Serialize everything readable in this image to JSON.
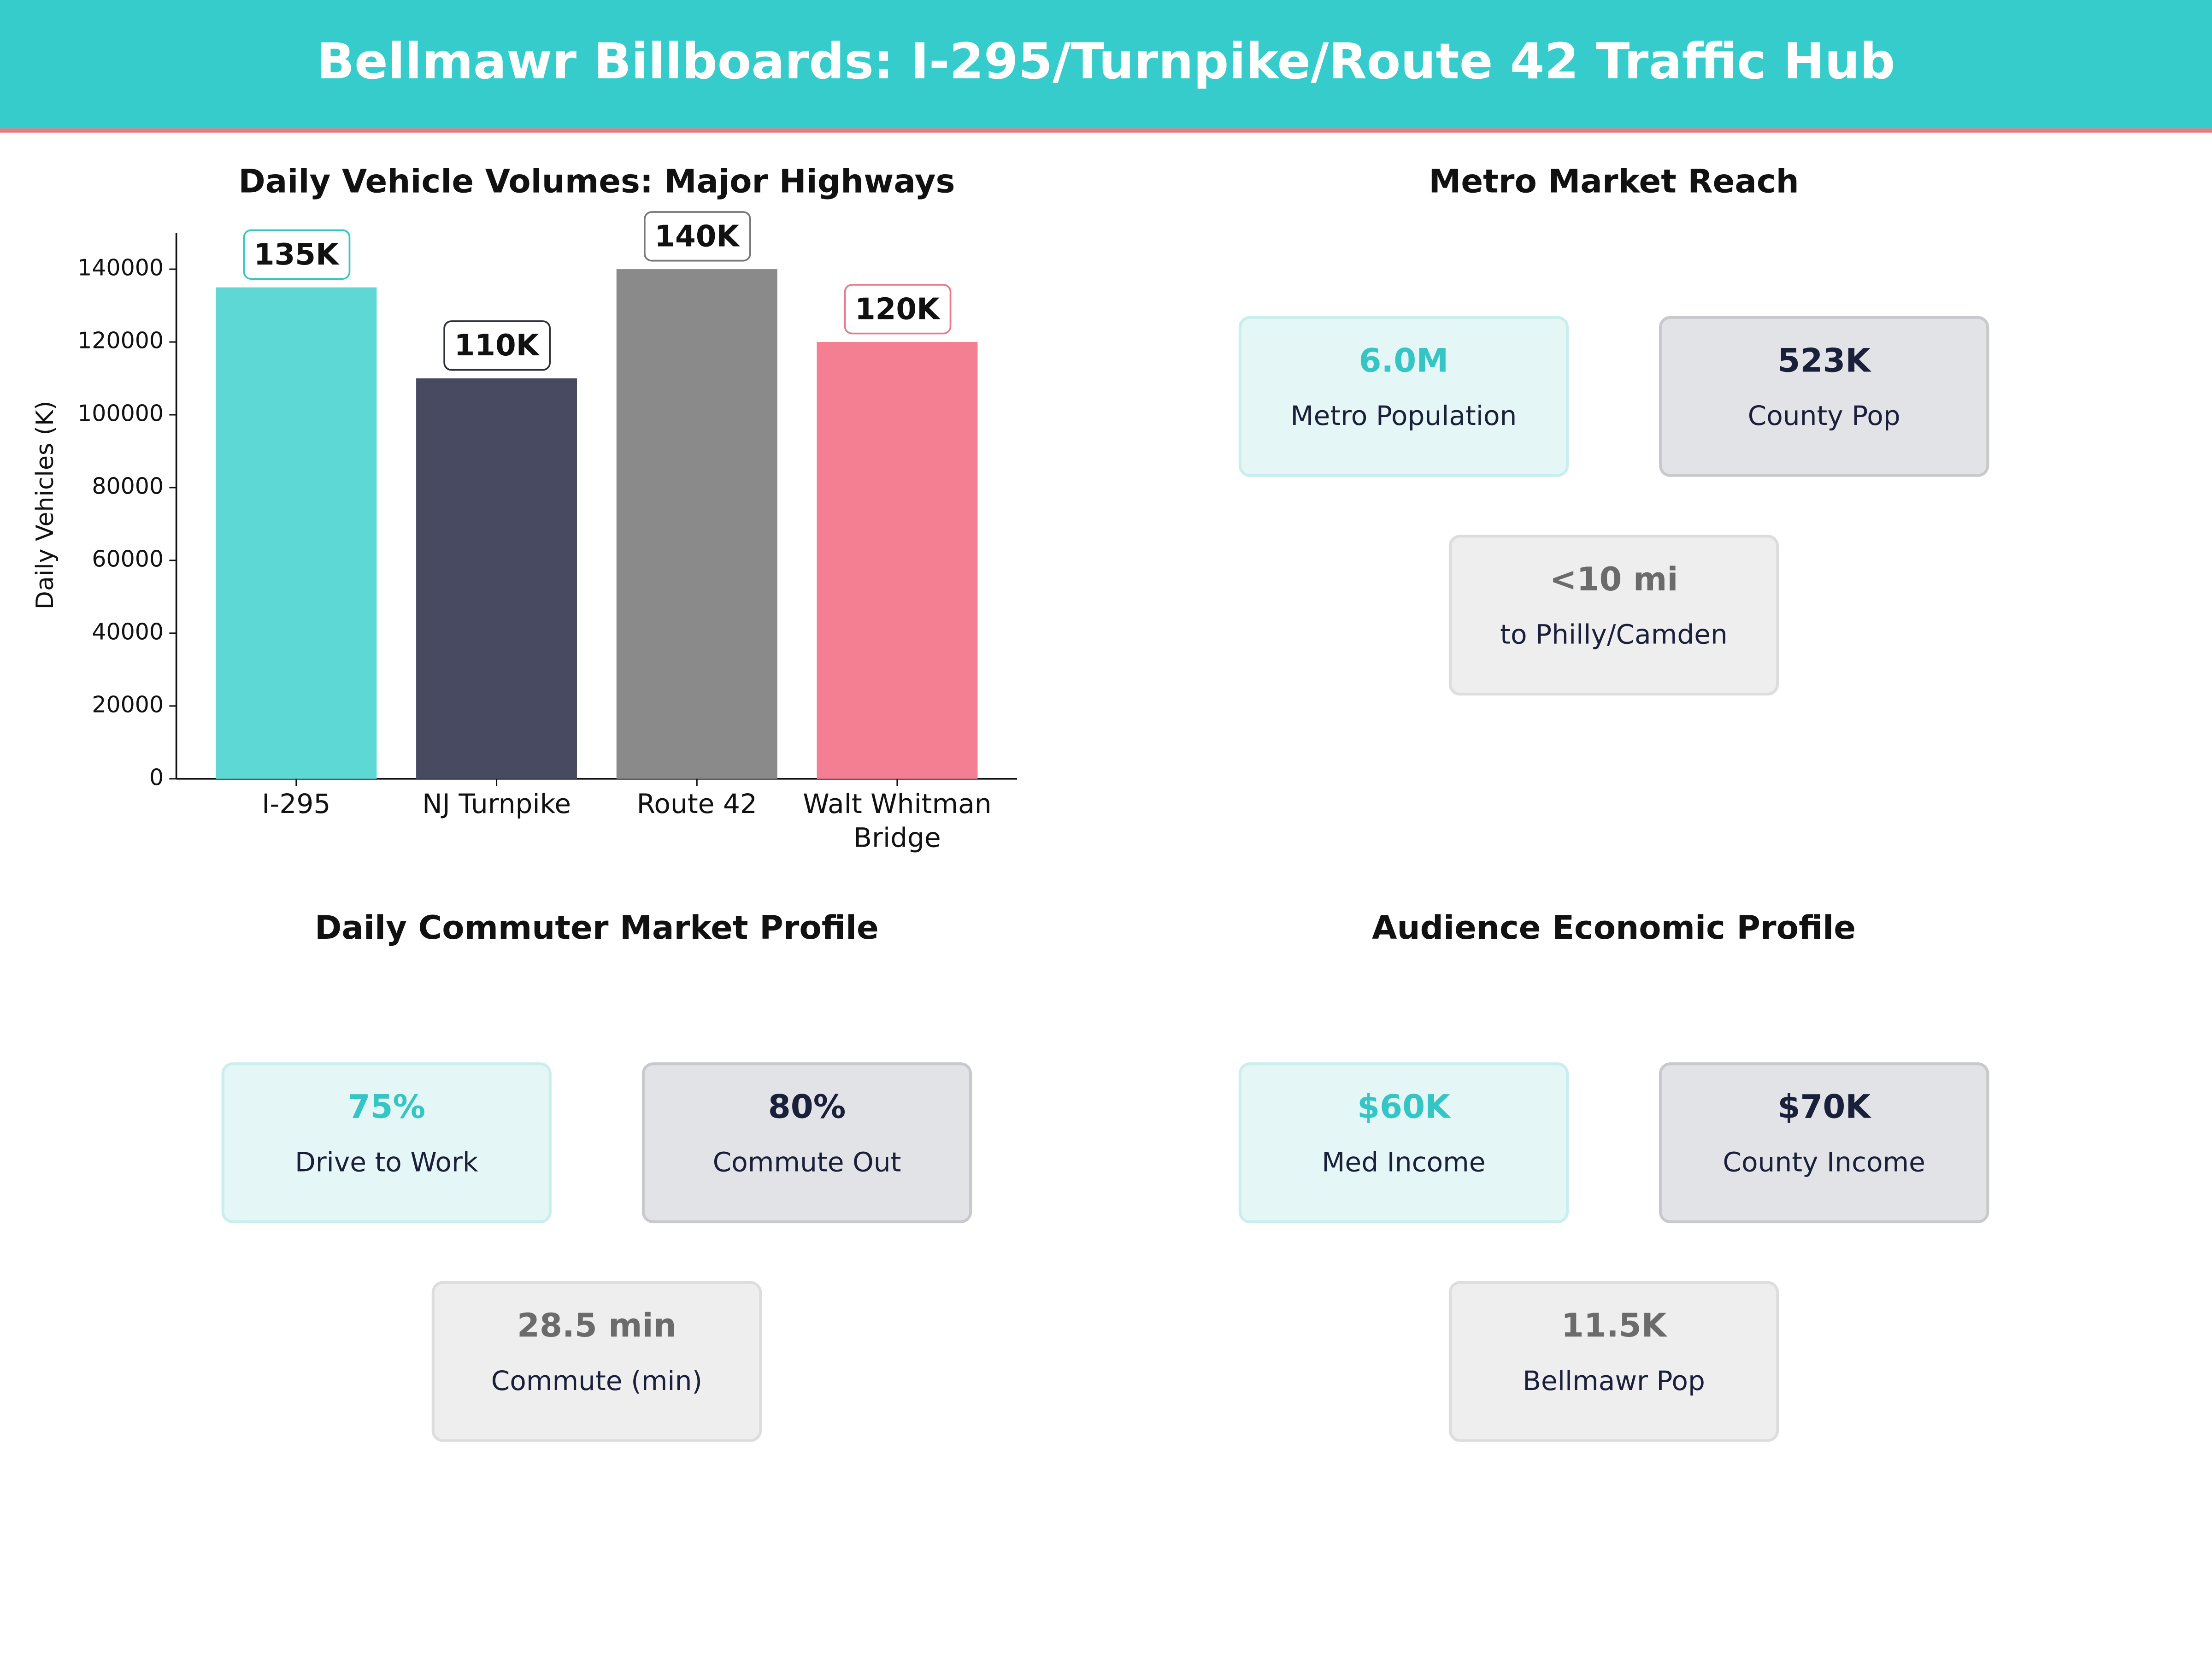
{
  "header": {
    "title": "Bellmawr Billboards: I-295/Turnpike/Route 42 Traffic Hub"
  },
  "chart_data": {
    "type": "bar",
    "title": "Daily Vehicle Volumes: Major Highways",
    "y_label": "Daily Vehicles (K)",
    "categories": [
      "I-295",
      "NJ Turnpike",
      "Route 42",
      "Walt Whitman Bridge"
    ],
    "values": [
      135000,
      110000,
      140000,
      120000
    ],
    "value_labels": [
      "135K",
      "110K",
      "140K",
      "120K"
    ],
    "colors": [
      "#5dd8d4",
      "#474a61",
      "#8a8a8a",
      "#f57f92"
    ],
    "ylim": [
      0,
      150000
    ],
    "yticks": [
      0,
      20000,
      40000,
      60000,
      80000,
      100000,
      120000,
      140000
    ]
  },
  "panels": [
    {
      "title": "Metro Market Reach",
      "cards": [
        {
          "value": "6.0M",
          "label": "Metro Population"
        },
        {
          "value": "523K",
          "label": "County Pop"
        },
        {
          "value": "<10 mi",
          "label": "to Philly/Camden"
        }
      ]
    },
    {
      "title": "Daily Commuter Market Profile",
      "cards": [
        {
          "value": "75%",
          "label": "Drive to Work"
        },
        {
          "value": "80%",
          "label": "Commute Out"
        },
        {
          "value": "28.5 min",
          "label": "Commute (min)"
        }
      ]
    },
    {
      "title": "Audience Economic Profile",
      "cards": [
        {
          "value": "$60K",
          "label": "Med Income"
        },
        {
          "value": "$70K",
          "label": "County Income"
        },
        {
          "value": "11.5K",
          "label": "Bellmawr Pop"
        }
      ]
    }
  ]
}
